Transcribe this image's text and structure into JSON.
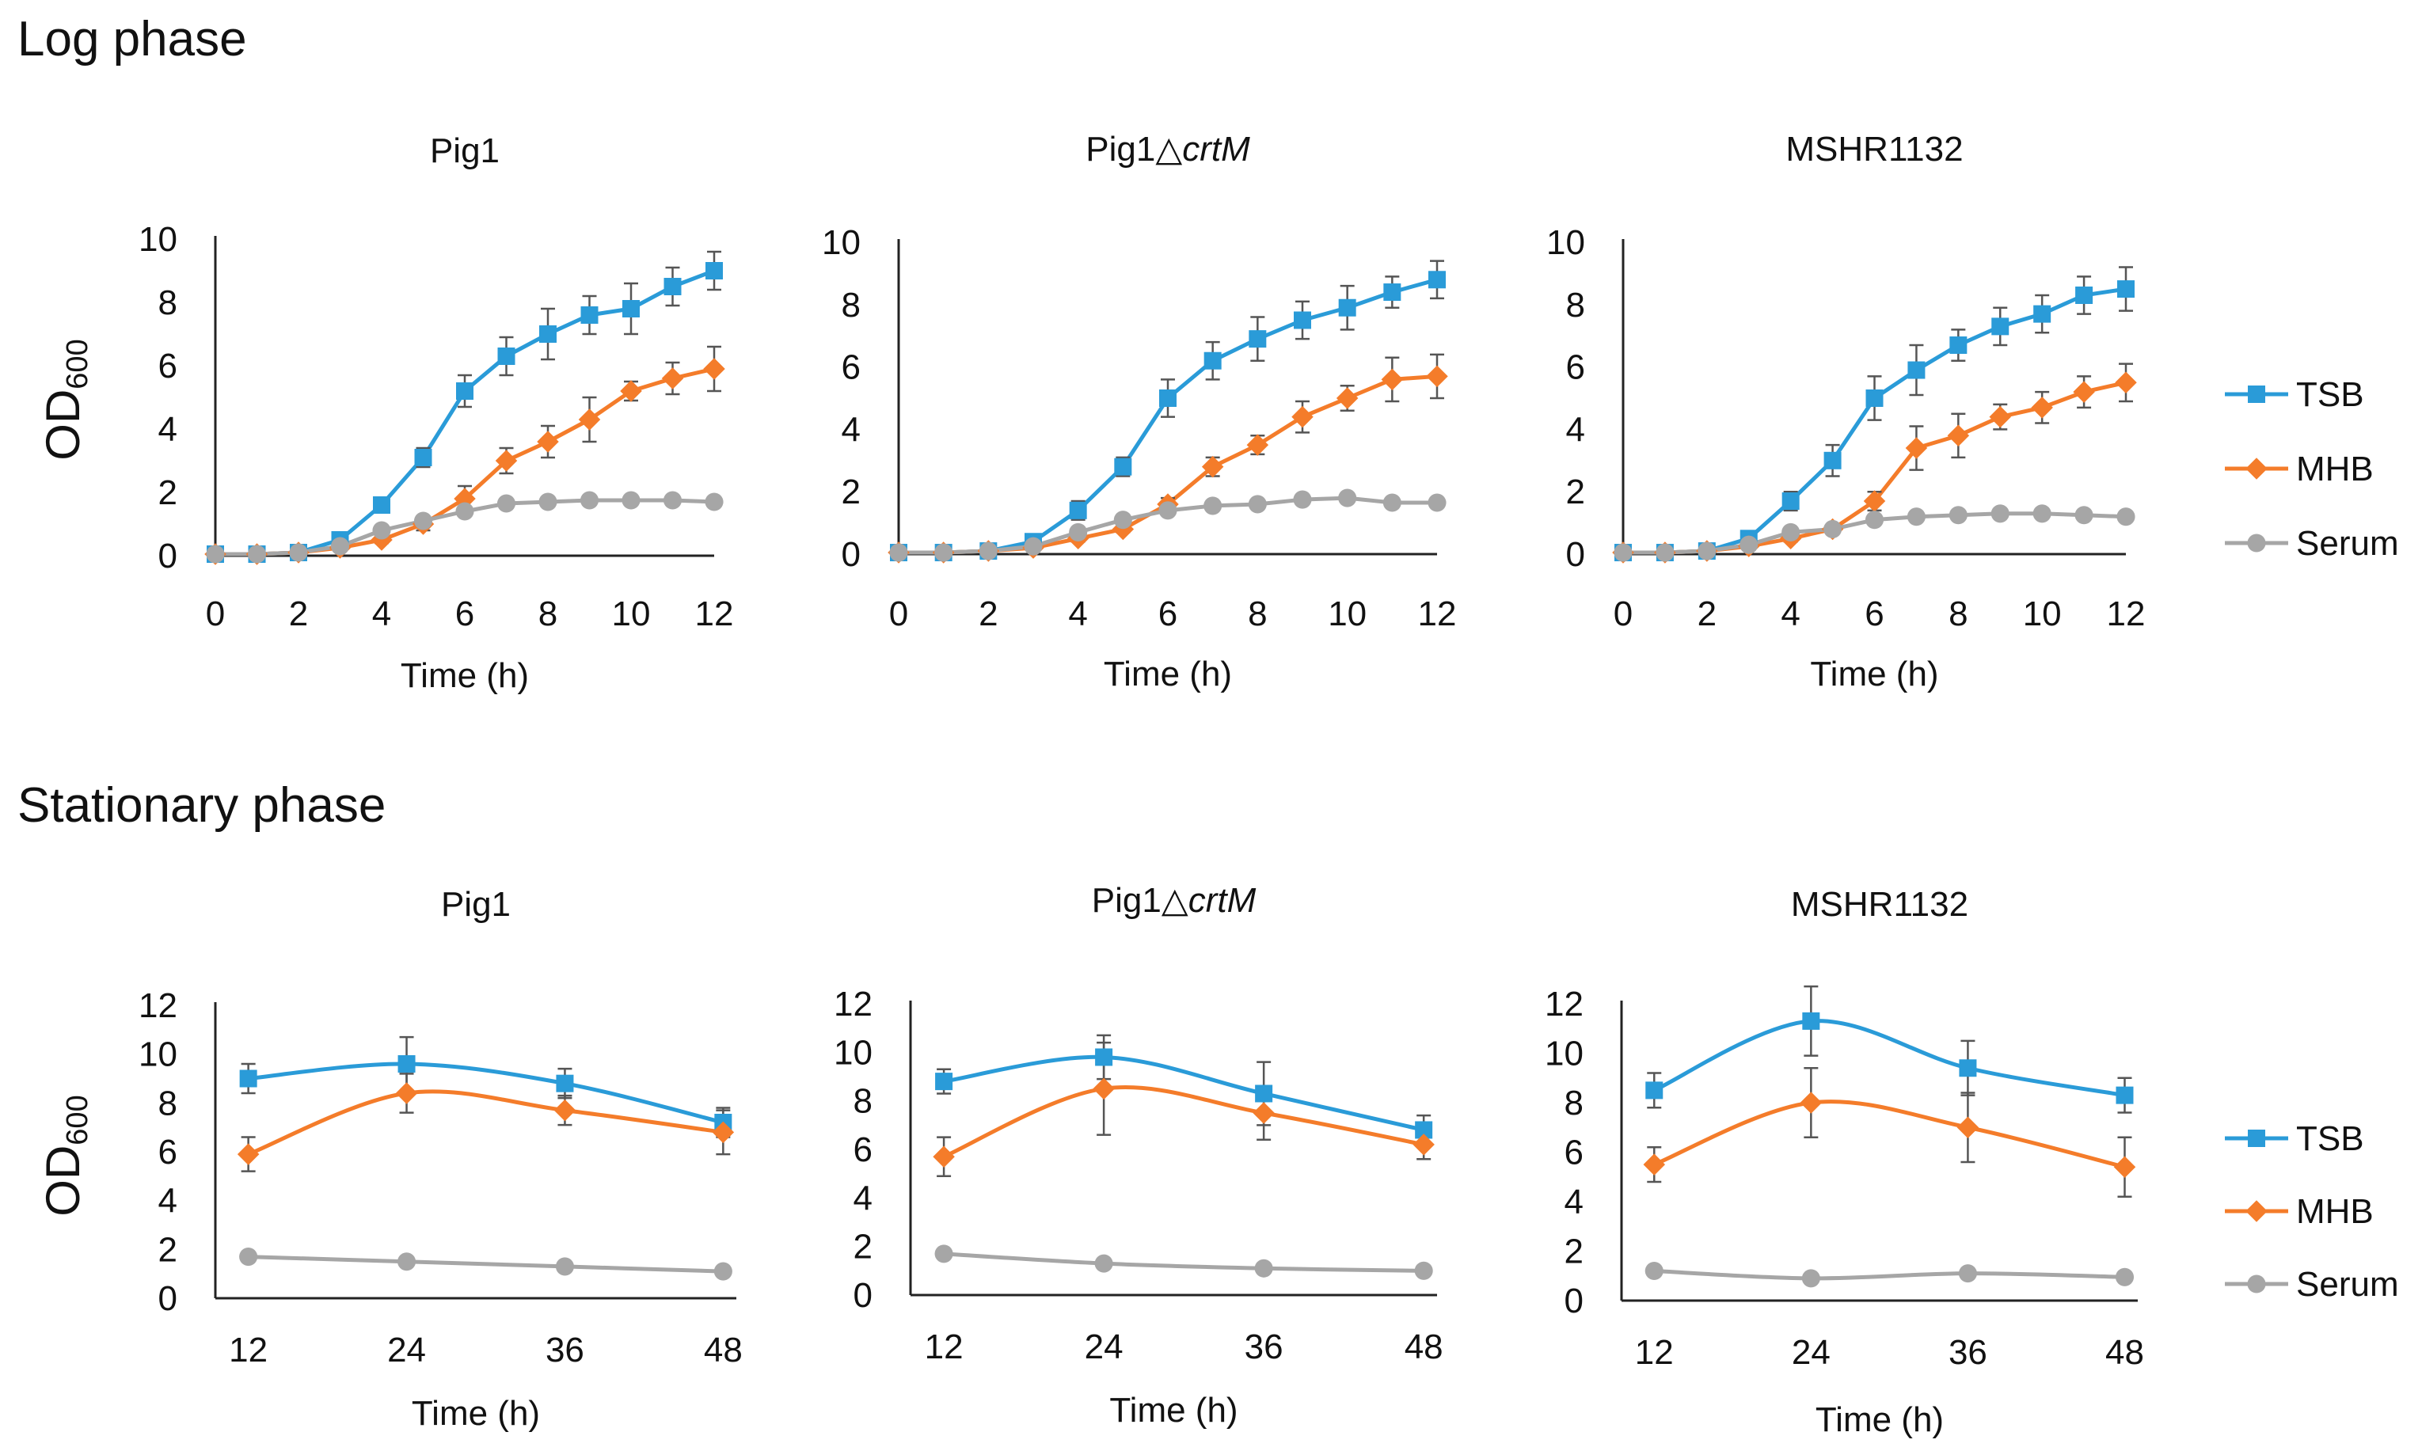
{
  "sections": {
    "log": {
      "title": "Log phase"
    },
    "stationary": {
      "title": "Stationary phase"
    }
  },
  "y_label": {
    "main": "OD",
    "sub": "600"
  },
  "colors": {
    "TSB": "#2a9bd8",
    "MHB": "#f47c2a",
    "Serum": "#a6a6a6",
    "axis": "#222222",
    "errbar": "#555555"
  },
  "legend": [
    {
      "name": "TSB",
      "marker": "square"
    },
    {
      "name": "MHB",
      "marker": "diamond"
    },
    {
      "name": "Serum",
      "marker": "circle"
    }
  ],
  "chart_data": [
    {
      "id": "log-pig1",
      "type": "line",
      "title": "Pig1",
      "title_italic": "",
      "xlabel": "Time (h)",
      "ylabel": "OD600",
      "xlim": [
        0,
        12
      ],
      "ylim": [
        0,
        10
      ],
      "xticks": [
        0,
        2,
        4,
        6,
        8,
        10,
        12
      ],
      "yticks": [
        0,
        2,
        4,
        6,
        8,
        10
      ],
      "x": [
        0,
        1,
        2,
        3,
        4,
        5,
        6,
        7,
        8,
        9,
        10,
        11,
        12
      ],
      "series": [
        {
          "name": "TSB",
          "marker": "square",
          "values": [
            0.05,
            0.05,
            0.1,
            0.5,
            1.6,
            3.1,
            5.2,
            6.3,
            7.0,
            7.6,
            7.8,
            8.5,
            9.0
          ],
          "err": [
            0,
            0,
            0,
            0.1,
            0.2,
            0.3,
            0.5,
            0.6,
            0.8,
            0.6,
            0.8,
            0.6,
            0.6
          ]
        },
        {
          "name": "MHB",
          "marker": "diamond",
          "values": [
            0.05,
            0.05,
            0.1,
            0.25,
            0.5,
            1.0,
            1.8,
            3.0,
            3.6,
            4.3,
            5.2,
            5.6,
            5.9
          ],
          "err": [
            0,
            0,
            0,
            0.1,
            0.1,
            0.2,
            0.4,
            0.4,
            0.5,
            0.7,
            0.3,
            0.5,
            0.7
          ]
        },
        {
          "name": "Serum",
          "marker": "circle",
          "values": [
            0.05,
            0.05,
            0.1,
            0.3,
            0.8,
            1.1,
            1.4,
            1.65,
            1.7,
            1.75,
            1.75,
            1.75,
            1.7
          ],
          "err": [
            0,
            0,
            0,
            0,
            0,
            0,
            0.1,
            0.1,
            0.1,
            0.1,
            0.1,
            0.1,
            0.1
          ]
        }
      ]
    },
    {
      "id": "log-crtm",
      "type": "line",
      "title": "Pig1△",
      "title_italic": "crtM",
      "xlabel": "Time (h)",
      "ylabel": "OD600",
      "xlim": [
        0,
        12
      ],
      "ylim": [
        0,
        10
      ],
      "xticks": [
        0,
        2,
        4,
        6,
        8,
        10,
        12
      ],
      "yticks": [
        0,
        2,
        4,
        6,
        8,
        10
      ],
      "x": [
        0,
        1,
        2,
        3,
        4,
        5,
        6,
        7,
        8,
        9,
        10,
        11,
        12
      ],
      "series": [
        {
          "name": "TSB",
          "marker": "square",
          "values": [
            0.05,
            0.05,
            0.1,
            0.4,
            1.4,
            2.8,
            5.0,
            6.2,
            6.9,
            7.5,
            7.9,
            8.4,
            8.8
          ],
          "err": [
            0,
            0,
            0,
            0.1,
            0.3,
            0.3,
            0.6,
            0.6,
            0.7,
            0.6,
            0.7,
            0.5,
            0.6
          ]
        },
        {
          "name": "MHB",
          "marker": "diamond",
          "values": [
            0.05,
            0.05,
            0.1,
            0.2,
            0.5,
            0.8,
            1.6,
            2.8,
            3.5,
            4.4,
            5.0,
            5.6,
            5.7
          ],
          "err": [
            0,
            0,
            0,
            0.1,
            0.1,
            0.1,
            0.2,
            0.3,
            0.3,
            0.5,
            0.4,
            0.7,
            0.7
          ]
        },
        {
          "name": "Serum",
          "marker": "circle",
          "values": [
            0.05,
            0.05,
            0.1,
            0.25,
            0.7,
            1.1,
            1.4,
            1.55,
            1.6,
            1.75,
            1.8,
            1.65,
            1.65
          ],
          "err": [
            0,
            0,
            0,
            0,
            0,
            0,
            0.1,
            0.1,
            0.1,
            0.1,
            0.1,
            0.1,
            0.1
          ]
        }
      ]
    },
    {
      "id": "log-mshr",
      "type": "line",
      "title": "MSHR1132",
      "title_italic": "",
      "xlabel": "Time (h)",
      "ylabel": "OD600",
      "xlim": [
        0,
        12
      ],
      "ylim": [
        0,
        10
      ],
      "xticks": [
        0,
        2,
        4,
        6,
        8,
        10,
        12
      ],
      "yticks": [
        0,
        2,
        4,
        6,
        8,
        10
      ],
      "x": [
        0,
        1,
        2,
        3,
        4,
        5,
        6,
        7,
        8,
        9,
        10,
        11,
        12
      ],
      "series": [
        {
          "name": "TSB",
          "marker": "square",
          "values": [
            0.05,
            0.05,
            0.1,
            0.5,
            1.7,
            3.0,
            5.0,
            5.9,
            6.7,
            7.3,
            7.7,
            8.3,
            8.5
          ],
          "err": [
            0,
            0,
            0,
            0.1,
            0.3,
            0.5,
            0.7,
            0.8,
            0.5,
            0.6,
            0.6,
            0.6,
            0.7
          ]
        },
        {
          "name": "MHB",
          "marker": "diamond",
          "values": [
            0.05,
            0.05,
            0.1,
            0.25,
            0.5,
            0.8,
            1.7,
            3.4,
            3.8,
            4.4,
            4.7,
            5.2,
            5.5
          ],
          "err": [
            0,
            0,
            0,
            0.1,
            0.1,
            0.1,
            0.3,
            0.7,
            0.7,
            0.4,
            0.5,
            0.5,
            0.6
          ]
        },
        {
          "name": "Serum",
          "marker": "circle",
          "values": [
            0.05,
            0.05,
            0.1,
            0.3,
            0.7,
            0.8,
            1.1,
            1.2,
            1.25,
            1.3,
            1.3,
            1.25,
            1.2
          ],
          "err": [
            0,
            0,
            0,
            0,
            0,
            0,
            0.1,
            0.1,
            0.1,
            0.1,
            0.1,
            0.1,
            0.1
          ]
        }
      ]
    },
    {
      "id": "stat-pig1",
      "type": "line",
      "title": "Pig1",
      "title_italic": "",
      "xlabel": "Time (h)",
      "ylabel": "OD600",
      "xlim": [
        9.5,
        49
      ],
      "ylim": [
        0,
        12
      ],
      "xticks": [
        12,
        24,
        36,
        48
      ],
      "yticks": [
        0,
        2,
        4,
        6,
        8,
        10,
        12
      ],
      "x": [
        12,
        24,
        36,
        48
      ],
      "series": [
        {
          "name": "TSB",
          "marker": "square",
          "values": [
            9.0,
            9.6,
            8.8,
            7.2
          ],
          "err": [
            0.6,
            1.1,
            0.6,
            0.6
          ]
        },
        {
          "name": "MHB",
          "marker": "diamond",
          "values": [
            5.9,
            8.4,
            7.7,
            6.8
          ],
          "err": [
            0.7,
            0.8,
            0.6,
            0.9
          ]
        },
        {
          "name": "Serum",
          "marker": "circle",
          "values": [
            1.7,
            1.5,
            1.3,
            1.1
          ],
          "err": [
            0.1,
            0.1,
            0.1,
            0.1
          ]
        }
      ]
    },
    {
      "id": "stat-crtm",
      "type": "line",
      "title": "Pig1△",
      "title_italic": "crtM",
      "xlabel": "Time (h)",
      "ylabel": "OD600",
      "xlim": [
        9.5,
        49
      ],
      "ylim": [
        0,
        12
      ],
      "xticks": [
        12,
        24,
        36,
        48
      ],
      "yticks": [
        0,
        2,
        4,
        6,
        8,
        10,
        12
      ],
      "x": [
        12,
        24,
        36,
        48
      ],
      "series": [
        {
          "name": "TSB",
          "marker": "square",
          "values": [
            8.8,
            9.8,
            8.3,
            6.8
          ],
          "err": [
            0.5,
            0.9,
            1.3,
            0.6
          ]
        },
        {
          "name": "MHB",
          "marker": "diamond",
          "values": [
            5.7,
            8.5,
            7.5,
            6.2
          ],
          "err": [
            0.8,
            1.9,
            1.1,
            0.6
          ]
        },
        {
          "name": "Serum",
          "marker": "circle",
          "values": [
            1.7,
            1.3,
            1.1,
            1.0
          ],
          "err": [
            0.1,
            0.1,
            0.1,
            0.1
          ]
        }
      ]
    },
    {
      "id": "stat-mshr",
      "type": "line",
      "title": "MSHR1132",
      "title_italic": "",
      "xlabel": "Time (h)",
      "ylabel": "OD600",
      "xlim": [
        9.5,
        49
      ],
      "ylim": [
        0,
        12
      ],
      "xticks": [
        12,
        24,
        36,
        48
      ],
      "yticks": [
        0,
        2,
        4,
        6,
        8,
        10,
        12
      ],
      "x": [
        12,
        24,
        36,
        48
      ],
      "series": [
        {
          "name": "TSB",
          "marker": "square",
          "values": [
            8.5,
            11.3,
            9.4,
            8.3
          ],
          "err": [
            0.7,
            1.4,
            1.1,
            0.7
          ]
        },
        {
          "name": "MHB",
          "marker": "diamond",
          "values": [
            5.5,
            8.0,
            7.0,
            5.4
          ],
          "err": [
            0.7,
            1.4,
            1.4,
            1.2
          ]
        },
        {
          "name": "Serum",
          "marker": "circle",
          "values": [
            1.2,
            0.9,
            1.1,
            0.95
          ],
          "err": [
            0.1,
            0.1,
            0.1,
            0.1
          ]
        }
      ]
    }
  ]
}
